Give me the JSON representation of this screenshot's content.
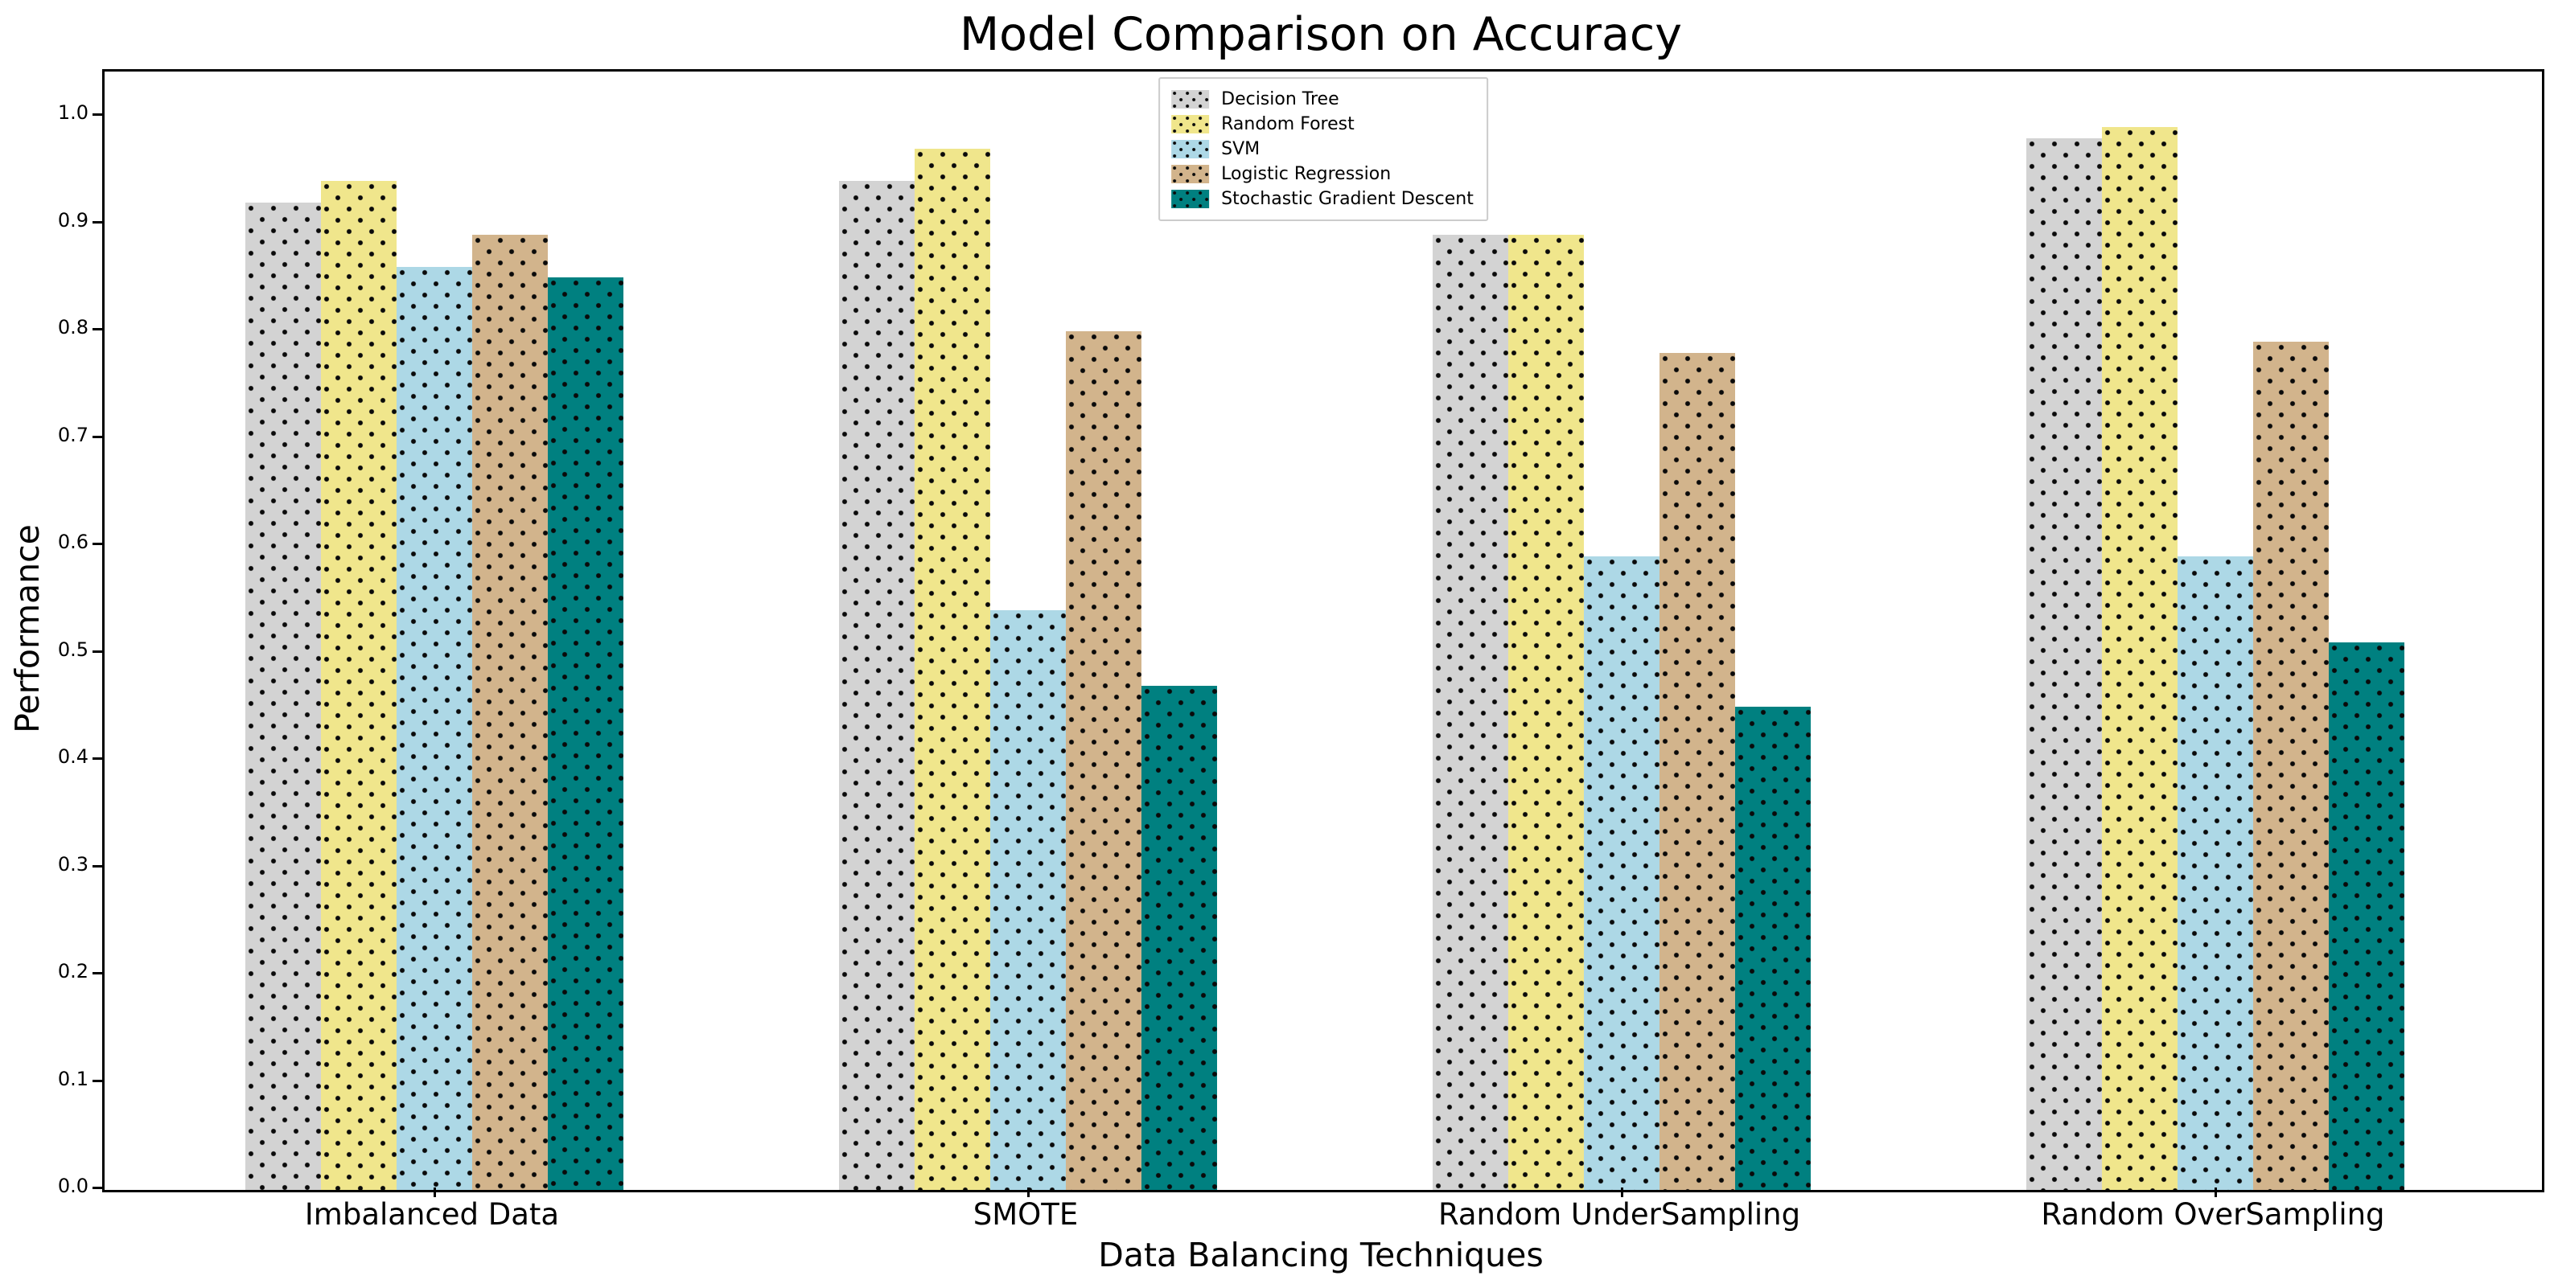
{
  "chart_data": {
    "type": "bar",
    "title": "Model Comparison on Accuracy",
    "xlabel": "Data Balancing Techniques",
    "ylabel": "Performance",
    "categories": [
      "Imbalanced Data",
      "SMOTE",
      "Random UnderSampling",
      "Random OverSampling"
    ],
    "series": [
      {
        "name": "Decision Tree",
        "color": "#d3d3d3",
        "values": [
          0.92,
          0.94,
          0.89,
          0.98
        ]
      },
      {
        "name": "Random Forest",
        "color": "#f0e68c",
        "values": [
          0.94,
          0.97,
          0.89,
          0.99
        ]
      },
      {
        "name": "SVM",
        "color": "#add8e6",
        "values": [
          0.86,
          0.54,
          0.59,
          0.59
        ]
      },
      {
        "name": "Logistic Regression",
        "color": "#d2b48c",
        "values": [
          0.89,
          0.8,
          0.78,
          0.79
        ]
      },
      {
        "name": "Stochastic Gradient Descent",
        "color": "#008080",
        "values": [
          0.85,
          0.47,
          0.45,
          0.51
        ]
      }
    ],
    "y_ticks": [
      "0.0",
      "0.1",
      "0.2",
      "0.3",
      "0.4",
      "0.5",
      "0.6",
      "0.7",
      "0.8",
      "0.9",
      "1.0"
    ],
    "ylim": [
      0.0,
      1.042
    ],
    "hatch": "dots",
    "grid": false,
    "legend_position": "upper center",
    "axis_color": "#000000",
    "background_color": "#ffffff"
  }
}
